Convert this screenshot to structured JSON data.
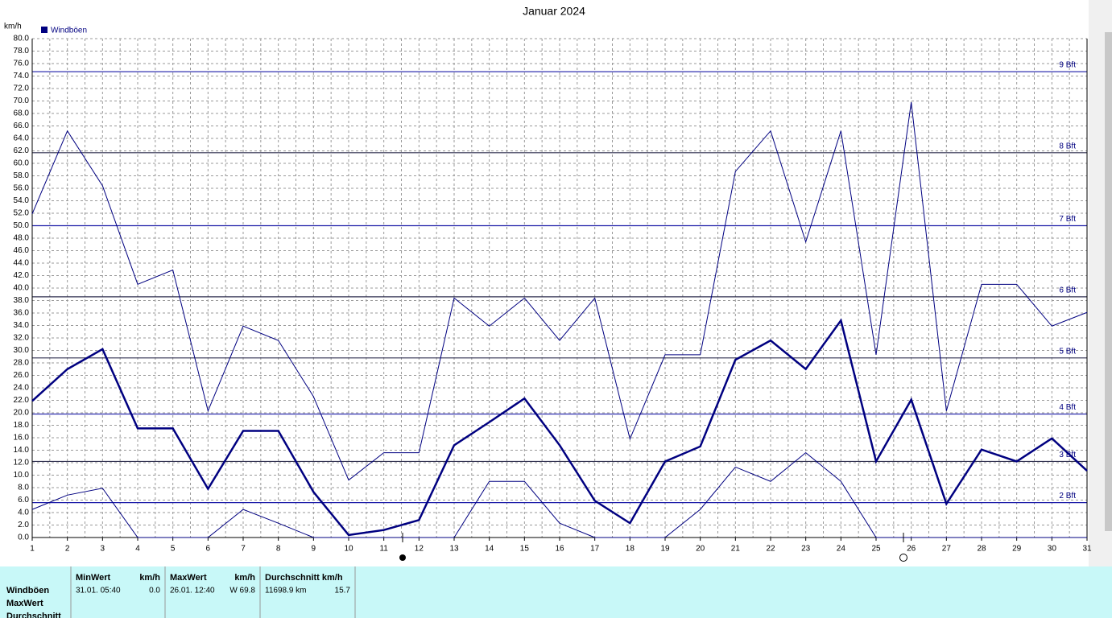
{
  "chart_data": {
    "type": "line",
    "title": "Januar 2024",
    "y_unit": "km/h",
    "x": [
      1,
      2,
      3,
      4,
      5,
      6,
      7,
      8,
      9,
      10,
      11,
      12,
      13,
      14,
      15,
      16,
      17,
      18,
      19,
      20,
      21,
      22,
      23,
      24,
      25,
      26,
      27,
      28,
      29,
      30,
      31
    ],
    "xlim": [
      1,
      31
    ],
    "xticks": [
      1,
      2,
      3,
      4,
      5,
      6,
      7,
      8,
      9,
      10,
      11,
      12,
      13,
      14,
      15,
      16,
      17,
      18,
      19,
      20,
      21,
      22,
      23,
      24,
      25,
      26,
      27,
      28,
      29,
      30,
      31
    ],
    "ylim": [
      0,
      80
    ],
    "yticks": [
      {
        "value": 0,
        "label": "0.0"
      },
      {
        "value": 2,
        "label": "2.0"
      },
      {
        "value": 4,
        "label": "4.0"
      },
      {
        "value": 6,
        "label": "6.0"
      },
      {
        "value": 8,
        "label": "8.0"
      },
      {
        "value": 10,
        "label": "10.0"
      },
      {
        "value": 12,
        "label": "12.0"
      },
      {
        "value": 14,
        "label": "14.0"
      },
      {
        "value": 16,
        "label": "16.0"
      },
      {
        "value": 18,
        "label": "18.0"
      },
      {
        "value": 20,
        "label": "20.0"
      },
      {
        "value": 22,
        "label": "22.0"
      },
      {
        "value": 24,
        "label": "24.0"
      },
      {
        "value": 26,
        "label": "26.0"
      },
      {
        "value": 28,
        "label": "28.0"
      },
      {
        "value": 30,
        "label": "30.0"
      },
      {
        "value": 32,
        "label": "32.0"
      },
      {
        "value": 34,
        "label": "34.0"
      },
      {
        "value": 36,
        "label": "36.0"
      },
      {
        "value": 38,
        "label": "38.0"
      },
      {
        "value": 40,
        "label": "40.0"
      },
      {
        "value": 42,
        "label": "42.0"
      },
      {
        "value": 44,
        "label": "44.0"
      },
      {
        "value": 46,
        "label": "46.0"
      },
      {
        "value": 48,
        "label": "48.0"
      },
      {
        "value": 50,
        "label": "50.0"
      },
      {
        "value": 52,
        "label": "52.0"
      },
      {
        "value": 54,
        "label": "54.0"
      },
      {
        "value": 56,
        "label": "56.0"
      },
      {
        "value": 58,
        "label": "58.0"
      },
      {
        "value": 60,
        "label": "60.0"
      },
      {
        "value": 62,
        "label": "62.0"
      },
      {
        "value": 64,
        "label": "64.0"
      },
      {
        "value": 66,
        "label": "66.0"
      },
      {
        "value": 68,
        "label": "68.0"
      },
      {
        "value": 70,
        "label": "70.0"
      },
      {
        "value": 72,
        "label": "72.0"
      },
      {
        "value": 74,
        "label": "74.0"
      },
      {
        "value": 76,
        "label": "76.0"
      },
      {
        "value": 78,
        "label": "78.0"
      },
      {
        "value": 80,
        "label": "80.0"
      }
    ],
    "grid": true,
    "series": [
      {
        "name": "Windböen",
        "color": "#000080",
        "width": 2.5,
        "values": [
          21.9,
          27.0,
          30.2,
          17.5,
          17.5,
          7.8,
          17.1,
          17.1,
          7.3,
          0.4,
          1.2,
          2.8,
          14.8,
          18.5,
          22.3,
          14.8,
          5.9,
          2.3,
          12.2,
          14.6,
          28.5,
          31.6,
          27.0,
          34.8,
          12.2,
          22.1,
          5.4,
          14.1,
          12.2,
          15.9,
          10.7
        ]
      },
      {
        "color": "#000080",
        "width": 1,
        "values": [
          51.9,
          65.2,
          56.4,
          40.6,
          42.9,
          20.3,
          33.9,
          31.6,
          22.6,
          9.2,
          13.6,
          13.6,
          38.4,
          33.9,
          38.4,
          31.6,
          38.4,
          15.8,
          29.3,
          29.3,
          58.7,
          65.2,
          47.4,
          65.2,
          29.3,
          69.8,
          20.3,
          40.6,
          40.6,
          33.9,
          36.1
        ]
      },
      {
        "color": "#000080",
        "width": 1,
        "values": [
          4.5,
          6.8,
          7.9,
          0,
          0,
          0,
          4.5,
          2.3,
          0,
          0,
          0,
          0,
          0,
          9.0,
          9.0,
          2.3,
          0,
          0,
          0,
          4.5,
          11.3,
          9.0,
          13.6,
          9.0,
          0,
          0,
          0,
          0,
          0,
          0,
          0
        ]
      }
    ],
    "reference_lines": [
      {
        "value": 5.6,
        "label": "2 Bft",
        "color": "#1c1ca8"
      },
      {
        "value": 12.2,
        "label": "3 Bft",
        "color": "#303050"
      },
      {
        "value": 19.8,
        "label": "4 Bft",
        "color": "#1c1ca8"
      },
      {
        "value": 28.8,
        "label": "5 Bft",
        "color": "#303050"
      },
      {
        "value": 38.6,
        "label": "6 Bft",
        "color": "#303050"
      },
      {
        "value": 50.0,
        "label": "7 Bft",
        "color": "#1c1ca8"
      },
      {
        "value": 61.7,
        "label": "8 Bft",
        "color": "#303050"
      },
      {
        "value": 74.7,
        "label": "9 Bft",
        "color": "#1c1ca8"
      }
    ]
  },
  "stats": {
    "rows": [
      "Windböen",
      "MaxWert",
      "Durchschnitt"
    ],
    "headers": [
      [
        "MinWert",
        "km/h"
      ],
      [
        "MaxWert",
        "km/h"
      ],
      [
        "Durchschnitt km/h"
      ]
    ],
    "cells": [
      [
        "31.01.  05:40",
        "0.0"
      ],
      [
        "26.01.  12:40",
        "W 69.8"
      ],
      [
        "11698.9 km",
        "15.7"
      ]
    ]
  }
}
